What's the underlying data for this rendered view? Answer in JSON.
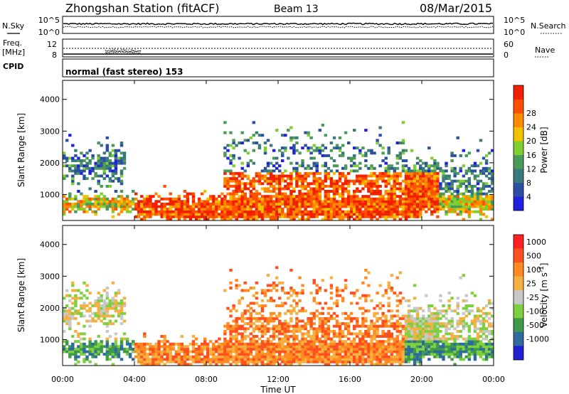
{
  "header": {
    "title": "Zhongshan Station (fitACF)",
    "beam": "Beam 13",
    "date": "08/Mar/2015"
  },
  "strip": {
    "nsky_label": "N.Sky",
    "nsearch_label": "N.Search",
    "noise_ticks": [
      "10^5",
      "10^0"
    ],
    "freq_label": "Freq.",
    "freq_unit": "[MHz]",
    "freq_ticks": [
      "12",
      "8"
    ],
    "nave_label": "Nave",
    "nave_ticks": [
      "60",
      "0"
    ],
    "cpid_label": "CPID",
    "cpid_value": "normal (fast stereo) 153"
  },
  "colors": {
    "power": [
      "#2020e0",
      "#2c4fa4",
      "#3a7a7a",
      "#4a9a5a",
      "#7fcf30",
      "#f2c200",
      "#ff8a00",
      "#ff5000",
      "#f02000"
    ],
    "velocity": [
      "#ff2020",
      "#ff5020",
      "#ff8a20",
      "#f5b040",
      "#c8c8c8",
      "#7fd040",
      "#3c9a4a",
      "#2f6aa0",
      "#2020d0"
    ]
  },
  "chart_data": [
    {
      "type": "heatmap",
      "parameter": "power",
      "ylabel": "Slant Range [km]",
      "ylim": [
        180,
        4600
      ],
      "yticks": [
        "1000",
        "2000",
        "3000",
        "4000"
      ],
      "xlim": [
        0,
        24
      ],
      "colorbar": {
        "label": "Power [dB]",
        "ticks": [
          "4",
          "8",
          "12",
          "16",
          "20",
          "24",
          "28"
        ]
      }
    },
    {
      "type": "heatmap",
      "parameter": "velocity",
      "ylabel": "Slant Range [km]",
      "ylim": [
        180,
        4600
      ],
      "yticks": [
        "1000",
        "2000",
        "3000",
        "4000"
      ],
      "xlim": [
        0,
        24
      ],
      "xticks": [
        "00:00",
        "04:00",
        "08:00",
        "12:00",
        "16:00",
        "20:00",
        "00:00"
      ],
      "xlabel": "Time UT",
      "colorbar": {
        "label": "Velocity [m s",
        "label_sup": "-1",
        "label_end": "]",
        "ticks": [
          "1000",
          "500",
          "100",
          "25",
          "-25",
          "-100",
          "-500",
          "-1000"
        ]
      }
    }
  ]
}
